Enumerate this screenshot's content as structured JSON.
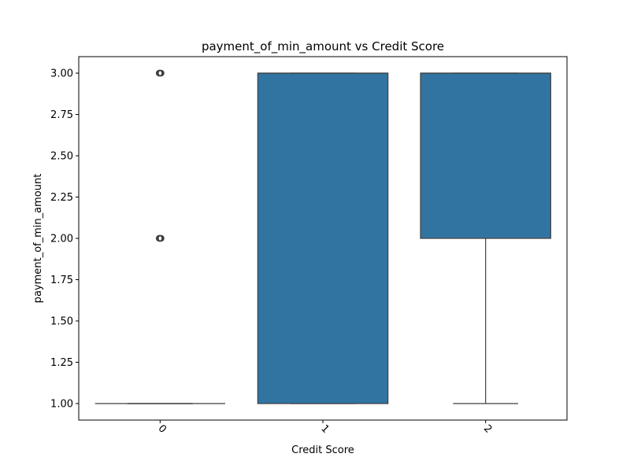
{
  "chart_data": {
    "type": "box",
    "title": "payment_of_min_amount vs Credit Score",
    "xlabel": "Credit Score",
    "ylabel": "payment_of_min_amount",
    "categories": [
      "0",
      "1",
      "2"
    ],
    "ylim": [
      0.9,
      3.1
    ],
    "yticks": [
      1.0,
      1.25,
      1.5,
      1.75,
      2.0,
      2.25,
      2.5,
      2.75,
      3.0
    ],
    "ytick_labels": [
      "1.00",
      "1.25",
      "1.50",
      "1.75",
      "2.00",
      "2.25",
      "2.50",
      "2.75",
      "3.00"
    ],
    "xtick_rotation": 45,
    "grid": false,
    "box_color": "#3274a1",
    "edge_color": "#3f3f3f",
    "boxes": [
      {
        "category": "0",
        "whislo": 1.0,
        "q1": 1.0,
        "med": 1.0,
        "q3": 1.0,
        "whishi": 1.0,
        "fliers": [
          2.0,
          3.0
        ]
      },
      {
        "category": "1",
        "whislo": 1.0,
        "q1": 1.0,
        "med": 3.0,
        "q3": 3.0,
        "whishi": 3.0,
        "fliers": []
      },
      {
        "category": "2",
        "whislo": 1.0,
        "q1": 2.0,
        "med": 3.0,
        "q3": 3.0,
        "whishi": 3.0,
        "fliers": []
      }
    ]
  }
}
